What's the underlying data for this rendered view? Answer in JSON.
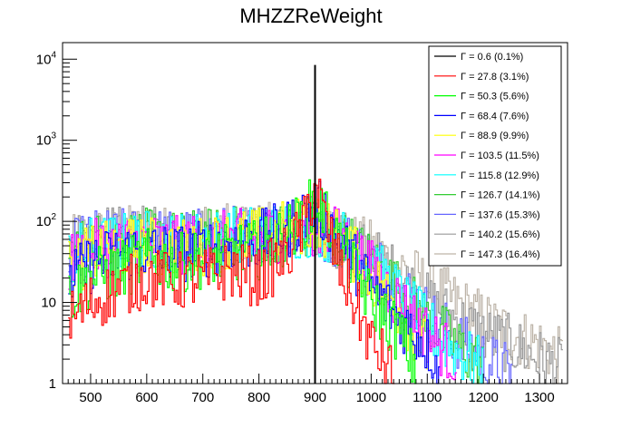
{
  "chart_data": {
    "type": "line",
    "title": "MHZZReWeight",
    "xlabel": "",
    "ylabel": "",
    "xlim": [
      450,
      1350
    ],
    "ylim": [
      1,
      16000
    ],
    "yscale": "log",
    "grid": false,
    "legend_position": "top-right",
    "x_ticks": [
      500,
      600,
      700,
      800,
      900,
      1000,
      1100,
      1200,
      1300
    ],
    "x_tick_labels": [
      "500",
      "600",
      "700",
      "800",
      "900",
      "1000",
      "1100",
      "1200",
      "1300"
    ],
    "y_ticks": [
      1,
      10,
      100,
      1000,
      10000
    ],
    "y_tick_labels": [
      {
        "base": "1",
        "exp": ""
      },
      {
        "base": "10",
        "exp": ""
      },
      {
        "base": "10",
        "exp": "2"
      },
      {
        "base": "10",
        "exp": "3"
      },
      {
        "base": "10",
        "exp": "4"
      }
    ],
    "series": [
      {
        "name": "Γ = 0.6 (0.1%)",
        "color": "#000000",
        "x": [
          900,
          900,
          901
        ],
        "y": [
          1,
          8500,
          1
        ]
      },
      {
        "name": "Γ = 27.8 (3.1%)",
        "color": "#ff0000",
        "x": [
          460,
          500,
          550,
          600,
          650,
          700,
          750,
          800,
          850,
          880,
          900,
          920,
          950,
          1000,
          1020,
          1040
        ],
        "y": [
          6,
          10,
          15,
          20,
          18,
          20,
          25,
          20,
          40,
          90,
          300,
          80,
          20,
          3,
          2,
          1.2
        ]
      },
      {
        "name": "Γ = 50.3 (5.6%)",
        "color": "#00ff00",
        "x": [
          460,
          500,
          550,
          600,
          650,
          700,
          750,
          800,
          850,
          880,
          900,
          920,
          950,
          1000,
          1050,
          1080
        ],
        "y": [
          12,
          20,
          25,
          35,
          30,
          35,
          40,
          45,
          70,
          110,
          190,
          110,
          40,
          10,
          4,
          1.5
        ]
      },
      {
        "name": "Γ = 68.4 (7.6%)",
        "color": "#0000ff",
        "x": [
          460,
          500,
          550,
          600,
          650,
          700,
          750,
          800,
          850,
          880,
          900,
          920,
          950,
          1000,
          1050,
          1100,
          1120
        ],
        "y": [
          18,
          30,
          40,
          45,
          40,
          45,
          55,
          60,
          80,
          120,
          150,
          110,
          50,
          15,
          6,
          3,
          1.5
        ]
      },
      {
        "name": "Γ = 88.9 (9.9%)",
        "color": "#ffff00",
        "x": [
          460,
          500,
          550,
          600,
          650,
          700,
          750,
          800,
          850,
          900,
          950,
          1000,
          1050,
          1100
        ],
        "y": [
          25,
          40,
          45,
          50,
          45,
          50,
          60,
          65,
          80,
          100,
          55,
          20,
          8,
          2.5
        ]
      },
      {
        "name": "Γ = 103.5 (11.5%)",
        "color": "#ff00ff",
        "x": [
          460,
          500,
          550,
          600,
          650,
          700,
          750,
          800,
          850,
          900,
          950,
          1000,
          1050,
          1100,
          1150
        ],
        "y": [
          30,
          45,
          50,
          55,
          50,
          55,
          60,
          65,
          75,
          90,
          60,
          25,
          10,
          4,
          2
        ]
      },
      {
        "name": "Γ = 115.8 (12.9%)",
        "color": "#00ffff",
        "x": [
          460,
          500,
          550,
          600,
          650,
          700,
          750,
          800,
          850,
          900,
          950,
          1000,
          1050,
          1100,
          1150,
          1200
        ],
        "y": [
          35,
          50,
          55,
          60,
          55,
          60,
          65,
          70,
          75,
          85,
          60,
          30,
          12,
          5,
          2.5,
          1.5
        ]
      },
      {
        "name": "Γ = 126.7 (14.1%)",
        "color": "#33cc33",
        "x": [
          460,
          500,
          550,
          600,
          650,
          700,
          750,
          800,
          850,
          900,
          950,
          1000,
          1050,
          1100,
          1150,
          1200
        ],
        "y": [
          38,
          55,
          60,
          62,
          58,
          62,
          66,
          70,
          75,
          80,
          60,
          32,
          14,
          6,
          3,
          1.6
        ]
      },
      {
        "name": "Γ = 137.6 (15.3%)",
        "color": "#6666ff",
        "x": [
          460,
          500,
          550,
          600,
          650,
          700,
          750,
          800,
          850,
          900,
          950,
          1000,
          1050,
          1100,
          1150,
          1200,
          1250
        ],
        "y": [
          42,
          60,
          62,
          65,
          60,
          64,
          68,
          70,
          74,
          78,
          60,
          35,
          16,
          7,
          3.5,
          2,
          1.3
        ]
      },
      {
        "name": "Γ = 140.2 (15.6%)",
        "color": "#999999",
        "x": [
          460,
          500,
          550,
          600,
          650,
          700,
          750,
          800,
          850,
          900,
          950,
          1000,
          1050,
          1100,
          1150,
          1200,
          1250,
          1300,
          1340
        ],
        "y": [
          45,
          62,
          65,
          66,
          62,
          65,
          68,
          70,
          72,
          75,
          58,
          38,
          20,
          10,
          6,
          4,
          3,
          2,
          1.5
        ]
      },
      {
        "name": "Γ = 147.3 (16.4%)",
        "color": "#bdb4a8",
        "x": [
          460,
          500,
          550,
          600,
          650,
          700,
          750,
          800,
          850,
          900,
          950,
          1000,
          1050,
          1100,
          1150,
          1200,
          1250,
          1300,
          1340
        ],
        "y": [
          48,
          65,
          68,
          70,
          66,
          68,
          70,
          72,
          74,
          76,
          60,
          45,
          28,
          16,
          10,
          6,
          4,
          3,
          2
        ]
      }
    ]
  }
}
